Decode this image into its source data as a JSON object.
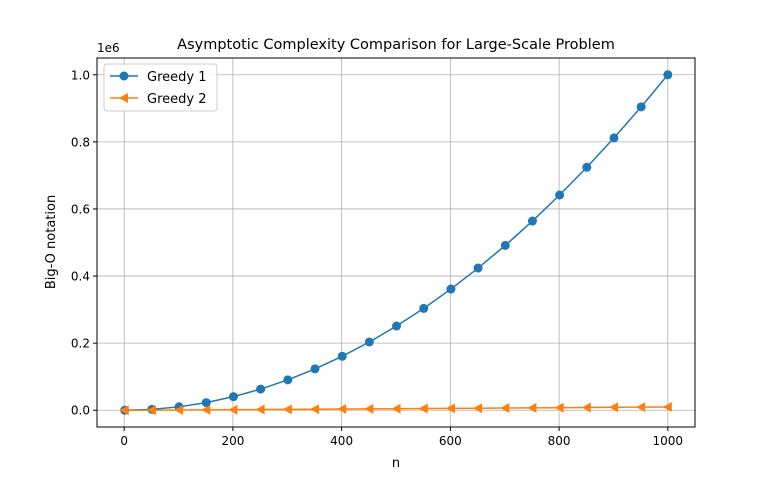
{
  "chart_data": {
    "type": "line",
    "title": "Asymptotic Complexity Comparison for Large-Scale Problem",
    "xlabel": "n",
    "ylabel": "Big-O notation",
    "y_offset_label": "1e6",
    "xlim": [
      -50,
      1050
    ],
    "ylim": [
      -0.05,
      1.05
    ],
    "grid": true,
    "legend_position": "top-left",
    "x_ticks": [
      0,
      200,
      400,
      600,
      800,
      1000
    ],
    "x_tick_labels": [
      "0",
      "200",
      "400",
      "600",
      "800",
      "1000"
    ],
    "y_ticks": [
      0.0,
      0.2,
      0.4,
      0.6,
      0.8,
      1.0
    ],
    "y_tick_labels": [
      "0.0",
      "0.2",
      "0.4",
      "0.6",
      "0.8",
      "1.0"
    ],
    "x": [
      1,
      51,
      101,
      151,
      201,
      251,
      301,
      351,
      401,
      451,
      501,
      551,
      601,
      651,
      701,
      751,
      801,
      851,
      901,
      951,
      1000
    ],
    "series": [
      {
        "name": "Greedy 1",
        "color": "#1f77b4",
        "marker": "circle",
        "values": [
          1e-06,
          0.0026,
          0.0102,
          0.0228,
          0.0404,
          0.063,
          0.0906,
          0.1232,
          0.1608,
          0.2034,
          0.251,
          0.3036,
          0.3612,
          0.4238,
          0.4914,
          0.564,
          0.6416,
          0.7242,
          0.8118,
          0.9044,
          1.0
        ]
      },
      {
        "name": "Greedy 2",
        "color": "#ff7f0e",
        "marker": "triangle-left",
        "values": [
          0.0,
          0.0003,
          0.0007,
          0.0011,
          0.0015,
          0.002,
          0.0025,
          0.003,
          0.0035,
          0.004,
          0.0045,
          0.005,
          0.0055,
          0.006,
          0.0065,
          0.007,
          0.0075,
          0.0081,
          0.0087,
          0.0092,
          0.0097
        ]
      }
    ]
  }
}
